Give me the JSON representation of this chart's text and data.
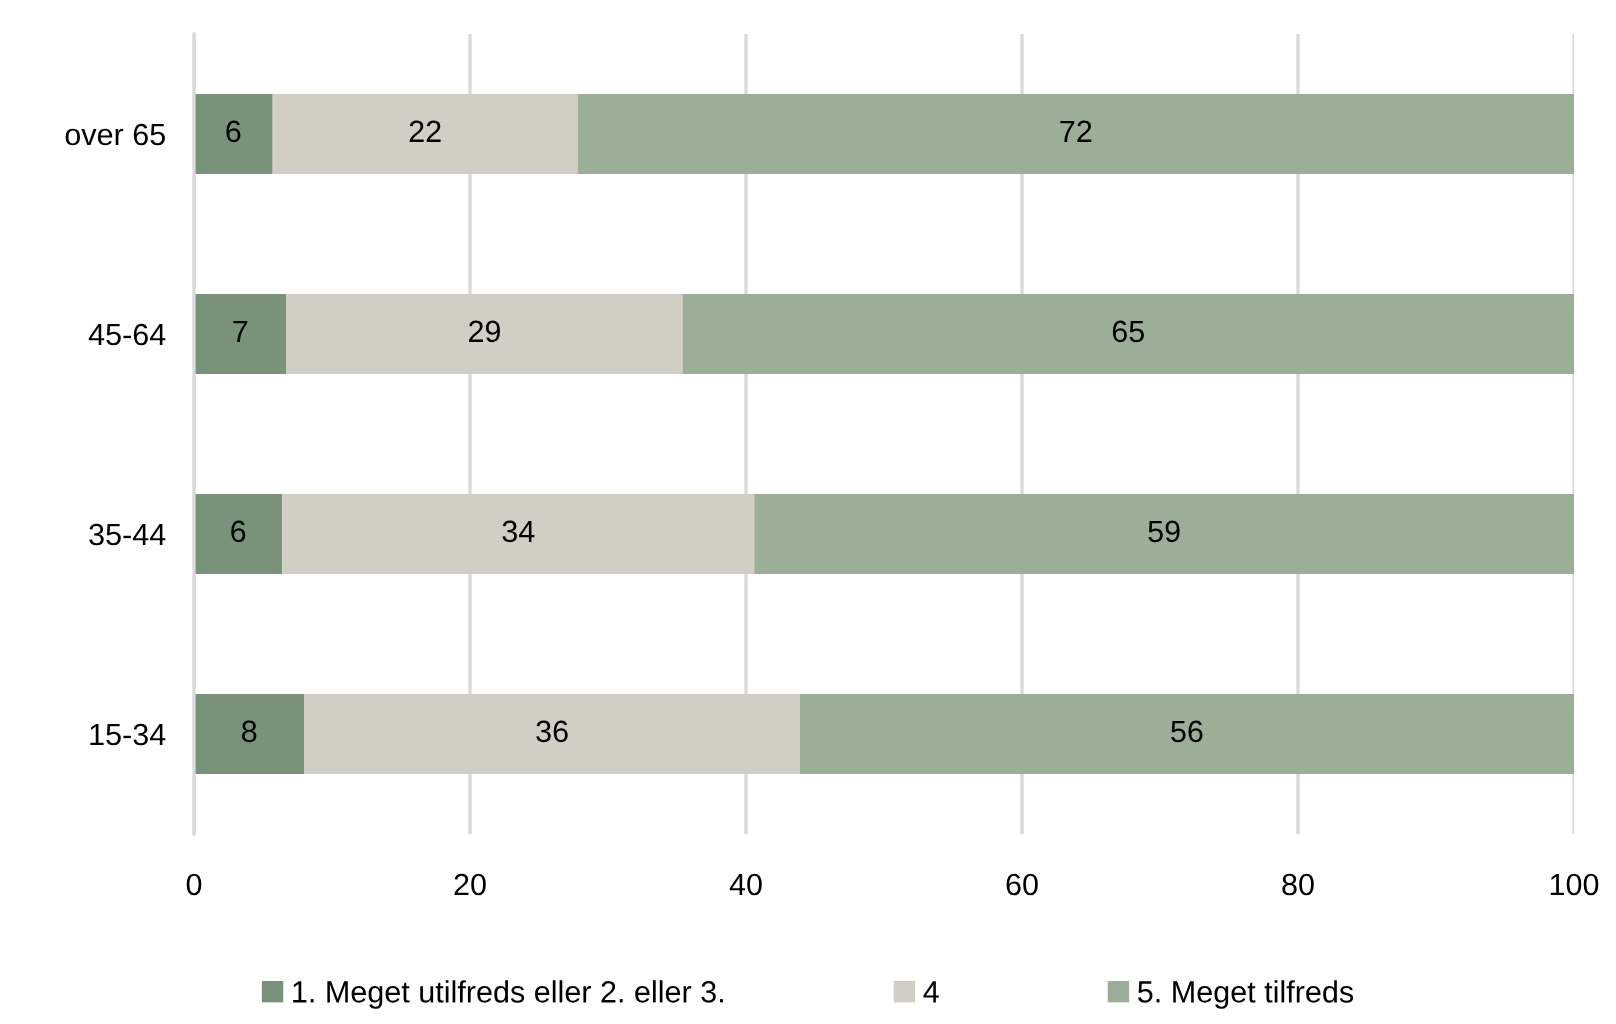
{
  "chart_data": {
    "type": "bar",
    "orientation": "horizontal",
    "stacked": true,
    "categories": [
      "over 65",
      "45-64",
      "35-44",
      "15-34"
    ],
    "series": [
      {
        "name": "1. Meget utilfreds eller 2. eller 3.",
        "color": "#7a927a",
        "values": [
          5.7,
          6.7,
          6.4,
          8.0
        ],
        "value_labels": [
          "6",
          "7",
          "6",
          "8"
        ]
      },
      {
        "name": "4",
        "color": "#d1cec3",
        "values": [
          22.1,
          28.7,
          34.2,
          35.9
        ],
        "value_labels": [
          "22",
          "29",
          "34",
          "36"
        ]
      },
      {
        "name": "5. Meget tilfreds",
        "color": "#9cad98",
        "values": [
          72.2,
          64.6,
          59.4,
          56.1
        ],
        "value_labels": [
          "72",
          "65",
          "59",
          "56"
        ]
      }
    ],
    "xlim": [
      0,
      100
    ],
    "xticks": [
      0,
      20,
      40,
      60,
      80,
      100
    ],
    "grid": "x",
    "legend": "bottom"
  }
}
